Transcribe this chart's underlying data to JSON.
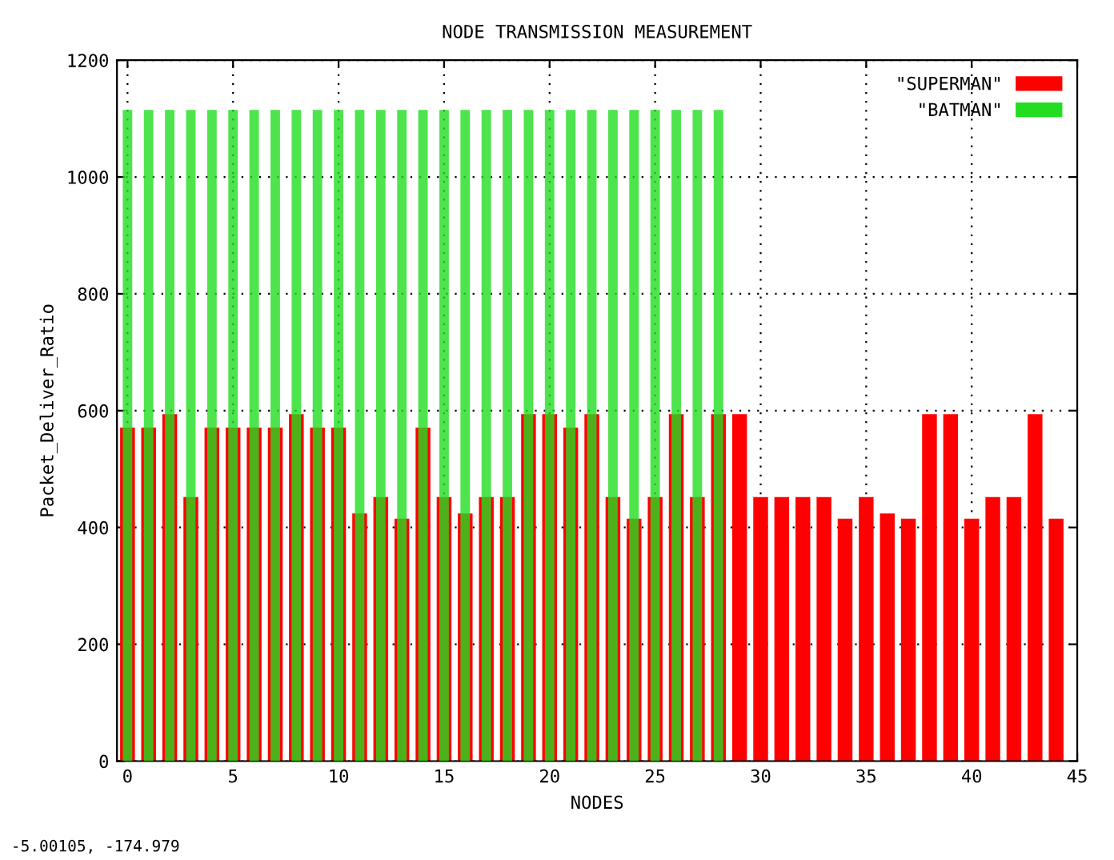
{
  "chart_data": {
    "type": "bar",
    "title": "NODE TRANSMISSION MEASUREMENT",
    "xlabel": "NODES",
    "ylabel": "Packet_Deliver_Ratio",
    "x": [
      0,
      1,
      2,
      3,
      4,
      5,
      6,
      7,
      8,
      9,
      10,
      11,
      12,
      13,
      14,
      15,
      16,
      17,
      18,
      19,
      20,
      21,
      22,
      23,
      24,
      25,
      26,
      27,
      28,
      29,
      30,
      31,
      32,
      33,
      34,
      35,
      36,
      37,
      38,
      39,
      40,
      41,
      42,
      43,
      44
    ],
    "series": [
      {
        "name": "\"SUPERMAN\"",
        "color": "#ff0000",
        "values": [
          571,
          571,
          594,
          452,
          571,
          571,
          571,
          571,
          594,
          571,
          571,
          424,
          452,
          415,
          571,
          452,
          424,
          452,
          452,
          594,
          594,
          571,
          594,
          452,
          415,
          452,
          594,
          452,
          594,
          594,
          452,
          452,
          452,
          452,
          415,
          452,
          424,
          415,
          594,
          594,
          415,
          452,
          452,
          594,
          415
        ]
      },
      {
        "name": "\"BATMAN\"",
        "color": "#22dd22",
        "values": [
          1115,
          1115,
          1115,
          1115,
          1115,
          1115,
          1115,
          1115,
          1115,
          1115,
          1115,
          1115,
          1115,
          1115,
          1115,
          1115,
          1115,
          1115,
          1115,
          1115,
          1115,
          1115,
          1115,
          1115,
          1115,
          1115,
          1115,
          1115,
          1115,
          null,
          null,
          null,
          null,
          null,
          null,
          null,
          null,
          null,
          null,
          null,
          null,
          null,
          null,
          null,
          null
        ]
      }
    ],
    "xlim": [
      -0.5,
      45
    ],
    "xticks": [
      0,
      5,
      10,
      15,
      20,
      25,
      30,
      35,
      40,
      45
    ],
    "ylim": [
      0,
      1200
    ],
    "yticks": [
      0,
      200,
      400,
      600,
      800,
      1000,
      1200
    ],
    "grid": true,
    "legend": "top right",
    "annotations": [
      "-5.00105, -174.979"
    ]
  }
}
